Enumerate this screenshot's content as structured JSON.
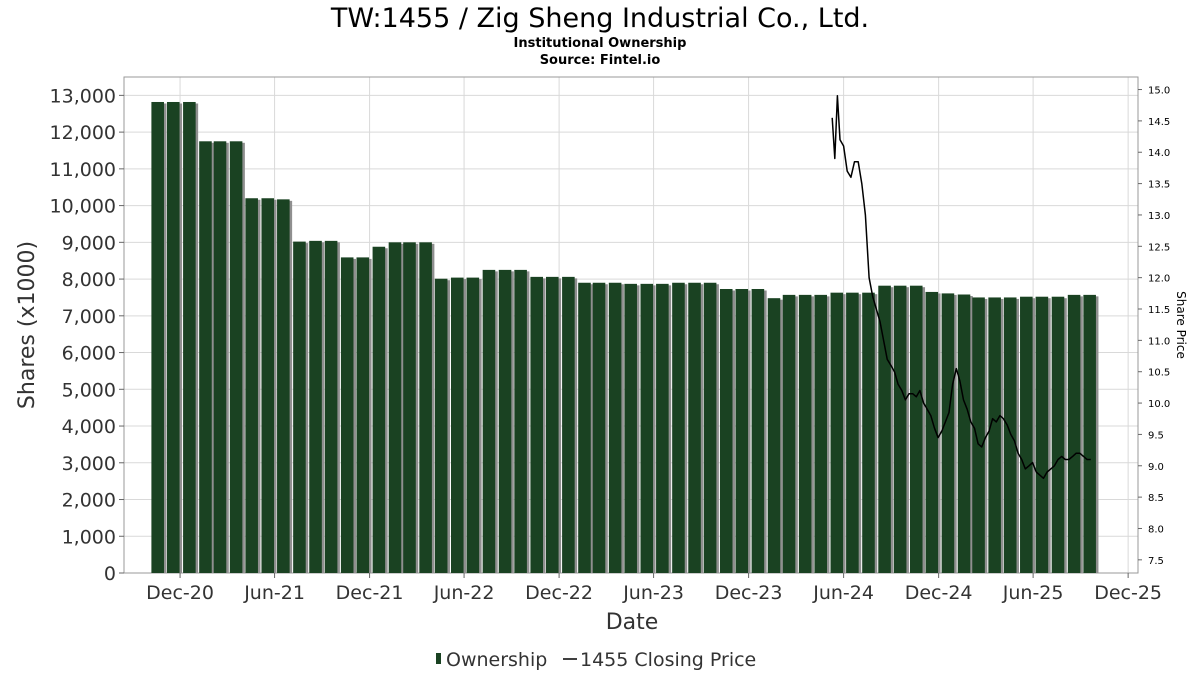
{
  "chart_data": {
    "type": "bar",
    "title": "TW:1455 / Zig Sheng Industrial Co., Ltd.",
    "subtitle": "Institutional Ownership",
    "source": "Source: Fintel.io",
    "xlabel": "Date",
    "ylabel": "Shares (x1000)",
    "y2label": "Share Price",
    "x_ticks": [
      "Dec-20",
      "Jun-21",
      "Dec-21",
      "Jun-22",
      "Dec-22",
      "Jun-23",
      "Dec-23",
      "Jun-24",
      "Dec-24",
      "Jun-25",
      "Dec-25"
    ],
    "x_range": [
      "2020-08-15",
      "2025-12-20"
    ],
    "y_ticks": [
      "0",
      "1,000",
      "2,000",
      "3,000",
      "4,000",
      "5,000",
      "6,000",
      "7,000",
      "8,000",
      "9,000",
      "10,000",
      "11,000",
      "12,000",
      "13,000"
    ],
    "ylim": [
      0,
      13500
    ],
    "y2_ticks": [
      "7.5",
      "8.0",
      "8.5",
      "9.0",
      "9.5",
      "10.0",
      "10.5",
      "11.0",
      "11.5",
      "12.0",
      "12.5",
      "13.0",
      "13.5",
      "14.0",
      "14.5",
      "15.0"
    ],
    "y2lim": [
      7.29,
      15.2
    ],
    "grid": true,
    "legend_position": "bottom-center",
    "colors": {
      "bar": "#1a4222",
      "bar_shadow": "#8f8f8f",
      "line": "#000000",
      "grid": "#d9d9d9"
    },
    "series": [
      {
        "name": "Ownership",
        "type": "bar",
        "dates": [
          "2020-10-31",
          "2020-11-30",
          "2020-12-31",
          "2021-01-31",
          "2021-02-28",
          "2021-03-31",
          "2021-04-30",
          "2021-05-31",
          "2021-06-30",
          "2021-07-31",
          "2021-08-31",
          "2021-09-30",
          "2021-10-31",
          "2021-11-30",
          "2021-12-31",
          "2022-01-31",
          "2022-02-28",
          "2022-03-31",
          "2022-04-30",
          "2022-05-31",
          "2022-06-30",
          "2022-07-31",
          "2022-08-31",
          "2022-09-30",
          "2022-10-31",
          "2022-11-30",
          "2022-12-31",
          "2023-01-31",
          "2023-02-28",
          "2023-03-31",
          "2023-04-30",
          "2023-05-31",
          "2023-06-30",
          "2023-07-31",
          "2023-08-31",
          "2023-09-30",
          "2023-10-31",
          "2023-11-30",
          "2023-12-31",
          "2024-01-31",
          "2024-02-29",
          "2024-03-31",
          "2024-04-30",
          "2024-05-31",
          "2024-06-30",
          "2024-07-31",
          "2024-08-31",
          "2024-09-30",
          "2024-10-31",
          "2024-11-30",
          "2024-12-31",
          "2025-01-31",
          "2025-02-28",
          "2025-03-31",
          "2025-04-30",
          "2025-05-31",
          "2025-06-30",
          "2025-07-31",
          "2025-08-31",
          "2025-09-30"
        ],
        "values": [
          12820,
          12820,
          12820,
          11750,
          11750,
          11750,
          10200,
          10200,
          10170,
          9020,
          9040,
          9040,
          8590,
          8590,
          8880,
          9000,
          9000,
          9000,
          8010,
          8040,
          8040,
          8250,
          8250,
          8250,
          8060,
          8060,
          8060,
          7900,
          7900,
          7900,
          7870,
          7870,
          7870,
          7900,
          7900,
          7900,
          7730,
          7730,
          7730,
          7480,
          7570,
          7570,
          7570,
          7630,
          7630,
          7630,
          7820,
          7820,
          7820,
          7650,
          7610,
          7580,
          7500,
          7500,
          7500,
          7520,
          7520,
          7520,
          7570,
          7570
        ]
      },
      {
        "name": "1455 Closing Price",
        "type": "line",
        "dates": [
          "2024-05-10",
          "2024-05-15",
          "2024-05-20",
          "2024-05-25",
          "2024-06-01",
          "2024-06-08",
          "2024-06-15",
          "2024-06-22",
          "2024-06-29",
          "2024-07-06",
          "2024-07-13",
          "2024-07-20",
          "2024-07-27",
          "2024-08-03",
          "2024-08-10",
          "2024-08-17",
          "2024-08-24",
          "2024-08-31",
          "2024-09-07",
          "2024-09-14",
          "2024-09-21",
          "2024-09-28",
          "2024-10-05",
          "2024-10-12",
          "2024-10-19",
          "2024-10-26",
          "2024-11-02",
          "2024-11-09",
          "2024-11-16",
          "2024-11-23",
          "2024-11-30",
          "2024-12-07",
          "2024-12-14",
          "2024-12-21",
          "2024-12-28",
          "2025-01-04",
          "2025-01-11",
          "2025-01-18",
          "2025-01-25",
          "2025-02-01",
          "2025-02-08",
          "2025-02-15",
          "2025-02-22",
          "2025-03-01",
          "2025-03-08",
          "2025-03-15",
          "2025-03-22",
          "2025-03-29",
          "2025-04-05",
          "2025-04-12",
          "2025-04-19",
          "2025-04-26",
          "2025-05-03",
          "2025-05-10",
          "2025-05-17",
          "2025-05-24",
          "2025-05-31",
          "2025-06-07",
          "2025-06-14",
          "2025-06-21",
          "2025-06-28",
          "2025-07-05",
          "2025-07-12",
          "2025-07-19",
          "2025-07-26",
          "2025-08-02",
          "2025-08-09",
          "2025-08-16",
          "2025-08-23",
          "2025-08-30",
          "2025-09-06",
          "2025-09-13",
          "2025-09-20"
        ],
        "values": [
          14.55,
          13.9,
          14.9,
          14.2,
          14.1,
          13.7,
          13.6,
          13.85,
          13.85,
          13.5,
          13.0,
          12.0,
          11.7,
          11.5,
          11.3,
          11.0,
          10.7,
          10.6,
          10.5,
          10.3,
          10.2,
          10.05,
          10.15,
          10.15,
          10.1,
          10.2,
          10.0,
          9.9,
          9.8,
          9.6,
          9.45,
          9.55,
          9.7,
          9.85,
          10.3,
          10.55,
          10.35,
          10.05,
          9.9,
          9.7,
          9.6,
          9.35,
          9.3,
          9.45,
          9.55,
          9.75,
          9.7,
          9.8,
          9.75,
          9.65,
          9.5,
          9.4,
          9.2,
          9.1,
          8.95,
          9.0,
          9.05,
          8.9,
          8.85,
          8.8,
          8.9,
          8.95,
          9.0,
          9.1,
          9.15,
          9.1,
          9.1,
          9.15,
          9.2,
          9.2,
          9.15,
          9.1,
          9.1
        ]
      }
    ]
  }
}
